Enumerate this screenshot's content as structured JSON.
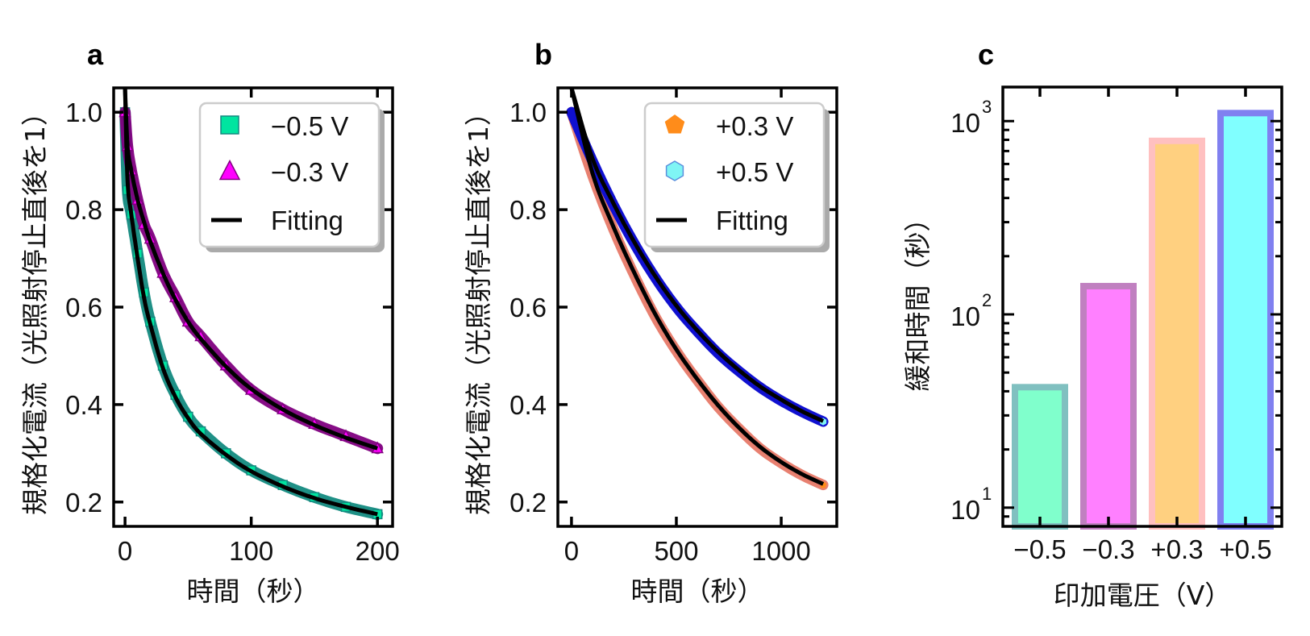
{
  "chart_data": [
    {
      "panel": "a",
      "type": "line",
      "title": "",
      "xlabel": "時間（秒）",
      "ylabel": "規格化電流（光照射停止直後を1）",
      "xlim": [
        -9,
        212
      ],
      "ylim": [
        0.15,
        1.05
      ],
      "xticks": [
        0,
        100,
        200
      ],
      "xtick_labels": [
        "0",
        "100",
        "200"
      ],
      "yticks": [
        0.2,
        0.4,
        0.6,
        0.8,
        1.0
      ],
      "ytick_labels": [
        "0.2",
        "0.4",
        "0.6",
        "0.8",
        "1.0"
      ],
      "grid": false,
      "legend_position": "top-right",
      "legend": [
        "−0.5 V",
        "−0.3 V",
        "Fitting"
      ],
      "series": [
        {
          "name": "−0.5 V",
          "marker": "square",
          "fill": "#00e5a0",
          "edge": "#138a80",
          "x": [
            0,
            2,
            5,
            10,
            15,
            20,
            30,
            40,
            50,
            60,
            80,
            100,
            125,
            150,
            175,
            200
          ],
          "y": [
            1.0,
            0.84,
            0.79,
            0.71,
            0.63,
            0.57,
            0.48,
            0.42,
            0.375,
            0.345,
            0.3,
            0.265,
            0.235,
            0.21,
            0.19,
            0.175
          ]
        },
        {
          "name": "−0.3 V",
          "marker": "triangle",
          "fill": "#ff00ff",
          "edge": "#800080",
          "x": [
            0,
            2,
            5,
            10,
            15,
            20,
            30,
            40,
            50,
            60,
            80,
            100,
            125,
            150,
            175,
            200
          ],
          "y": [
            1.0,
            0.93,
            0.88,
            0.82,
            0.77,
            0.74,
            0.67,
            0.62,
            0.57,
            0.54,
            0.48,
            0.43,
            0.39,
            0.36,
            0.335,
            0.31
          ]
        },
        {
          "name": "Fitting (−0.5 V)",
          "marker": "line",
          "color": "#000000",
          "x": [
            0,
            2,
            5,
            10,
            15,
            20,
            30,
            40,
            50,
            60,
            80,
            100,
            125,
            150,
            175,
            200
          ],
          "y": [
            1.05,
            0.86,
            0.79,
            0.7,
            0.62,
            0.565,
            0.475,
            0.415,
            0.372,
            0.34,
            0.297,
            0.263,
            0.232,
            0.208,
            0.19,
            0.175
          ]
        },
        {
          "name": "Fitting (−0.3 V)",
          "marker": "line",
          "color": "#000000",
          "x": [
            0,
            2,
            5,
            10,
            15,
            20,
            30,
            40,
            50,
            60,
            80,
            100,
            125,
            150,
            175,
            200
          ],
          "y": [
            1.05,
            0.93,
            0.88,
            0.82,
            0.775,
            0.735,
            0.67,
            0.615,
            0.57,
            0.535,
            0.478,
            0.432,
            0.39,
            0.358,
            0.332,
            0.31
          ]
        }
      ]
    },
    {
      "panel": "b",
      "type": "line",
      "title": "",
      "xlabel": "時間（秒）",
      "ylabel": "規格化電流（光照射停止直後を1）",
      "xlim": [
        -65,
        1265
      ],
      "ylim": [
        0.15,
        1.05
      ],
      "xticks": [
        0,
        500,
        1000
      ],
      "xtick_labels": [
        "0",
        "500",
        "1000"
      ],
      "yticks": [
        0.2,
        0.4,
        0.6,
        0.8,
        1.0
      ],
      "ytick_labels": [
        "0.2",
        "0.4",
        "0.6",
        "0.8",
        "1.0"
      ],
      "grid": false,
      "legend_position": "top-right",
      "legend": [
        "+0.3 V",
        "+0.5 V",
        "Fitting"
      ],
      "series": [
        {
          "name": "+0.3 V",
          "marker": "pentagon",
          "fill": "#ff8c1a",
          "edge": "#e88070",
          "x": [
            0,
            100,
            200,
            300,
            400,
            500,
            600,
            700,
            800,
            900,
            1000,
            1100,
            1200
          ],
          "y": [
            1.0,
            0.87,
            0.76,
            0.665,
            0.58,
            0.51,
            0.45,
            0.395,
            0.35,
            0.31,
            0.28,
            0.255,
            0.235
          ]
        },
        {
          "name": "+0.5 V",
          "marker": "hexagon",
          "fill": "#7ff5f5",
          "edge": "#1010d0",
          "x": [
            0,
            100,
            200,
            300,
            400,
            500,
            600,
            700,
            800,
            900,
            1000,
            1100,
            1200
          ],
          "y": [
            1.0,
            0.9,
            0.81,
            0.73,
            0.66,
            0.6,
            0.55,
            0.505,
            0.468,
            0.435,
            0.408,
            0.385,
            0.365
          ]
        },
        {
          "name": "Fitting (+0.3 V)",
          "marker": "line",
          "color": "#000000",
          "x": [
            0,
            100,
            200,
            300,
            400,
            500,
            600,
            700,
            800,
            900,
            1000,
            1100,
            1200
          ],
          "y": [
            1.05,
            0.875,
            0.765,
            0.67,
            0.585,
            0.513,
            0.452,
            0.398,
            0.352,
            0.313,
            0.282,
            0.257,
            0.237
          ]
        },
        {
          "name": "Fitting (+0.5 V)",
          "marker": "line",
          "color": "#000000",
          "x": [
            0,
            100,
            200,
            300,
            400,
            500,
            600,
            700,
            800,
            900,
            1000,
            1100,
            1200
          ],
          "y": [
            1.05,
            0.905,
            0.813,
            0.733,
            0.663,
            0.603,
            0.552,
            0.508,
            0.47,
            0.437,
            0.41,
            0.386,
            0.366
          ]
        }
      ]
    },
    {
      "panel": "c",
      "type": "bar",
      "title": "",
      "xlabel": "印加電圧（V）",
      "ylabel": "緩和時間（秒）",
      "yscale": "log",
      "ylim": [
        8,
        1500
      ],
      "categories": [
        "−0.5",
        "−0.3",
        "+0.3",
        "+0.5"
      ],
      "values": [
        42,
        140,
        790,
        1100
      ],
      "yticks": [
        10,
        100,
        1000
      ],
      "ytick_labels": [
        {
          "base": "10",
          "exp": "1"
        },
        {
          "base": "10",
          "exp": "2"
        },
        {
          "base": "10",
          "exp": "3"
        }
      ],
      "bar_fill": [
        "#80ffcc",
        "#ff80ff",
        "#ffd080",
        "#80ffff"
      ],
      "bar_edge": [
        "#80c0c0",
        "#c080c0",
        "#ffc0c0",
        "#8080f0"
      ],
      "grid": false
    }
  ],
  "panels": {
    "a": {
      "letter": "a"
    },
    "b": {
      "letter": "b"
    },
    "c": {
      "letter": "c"
    }
  },
  "colors": {
    "fit_line": "#000000",
    "legend_border": "#cccccc",
    "legend_shadow": "#aaaaaa"
  }
}
